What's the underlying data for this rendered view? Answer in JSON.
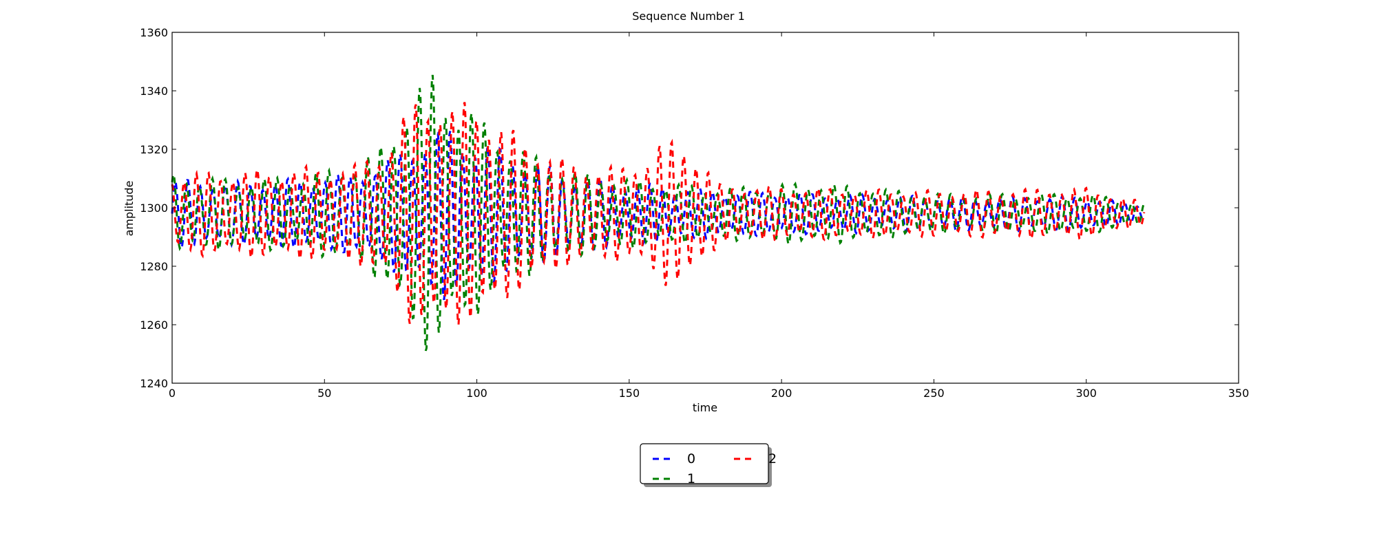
{
  "chart_data": {
    "type": "line",
    "title": "Sequence Number 1",
    "xlabel": "time",
    "ylabel": "amplitude",
    "xlim": [
      0,
      350
    ],
    "ylim": [
      1240,
      1360
    ],
    "xticks": [
      0,
      50,
      100,
      150,
      200,
      250,
      300,
      350
    ],
    "yticks": [
      1240,
      1260,
      1280,
      1300,
      1320,
      1340,
      1360
    ],
    "grid": false,
    "line_style": "dashed",
    "legend_position": "below-center",
    "legend_columns": 2,
    "x_range_of_data": [
      0,
      319
    ],
    "series": [
      {
        "name": "0",
        "color": "#0000ff",
        "approx_envelope": [
          [
            0,
            12
          ],
          [
            20,
            11
          ],
          [
            40,
            12
          ],
          [
            60,
            14
          ],
          [
            70,
            18
          ],
          [
            80,
            26
          ],
          [
            90,
            30
          ],
          [
            100,
            26
          ],
          [
            110,
            22
          ],
          [
            130,
            14
          ],
          [
            150,
            11
          ],
          [
            180,
            8
          ],
          [
            210,
            7
          ],
          [
            250,
            6
          ],
          [
            300,
            6
          ],
          [
            319,
            3
          ]
        ]
      },
      {
        "name": "1",
        "color": "#008000",
        "approx_envelope": [
          [
            0,
            14
          ],
          [
            20,
            12
          ],
          [
            40,
            13
          ],
          [
            60,
            17
          ],
          [
            70,
            25
          ],
          [
            78,
            42
          ],
          [
            86,
            50
          ],
          [
            92,
            40
          ],
          [
            100,
            35
          ],
          [
            110,
            25
          ],
          [
            130,
            15
          ],
          [
            150,
            12
          ],
          [
            180,
            9
          ],
          [
            210,
            11
          ],
          [
            250,
            7
          ],
          [
            300,
            7
          ],
          [
            319,
            4
          ]
        ]
      },
      {
        "name": "2",
        "color": "#ff0000",
        "approx_envelope": [
          [
            0,
            14
          ],
          [
            20,
            15
          ],
          [
            40,
            16
          ],
          [
            60,
            17
          ],
          [
            70,
            24
          ],
          [
            78,
            38
          ],
          [
            86,
            44
          ],
          [
            92,
            38
          ],
          [
            100,
            40
          ],
          [
            110,
            30
          ],
          [
            130,
            18
          ],
          [
            150,
            16
          ],
          [
            160,
            25
          ],
          [
            170,
            25
          ],
          [
            180,
            10
          ],
          [
            210,
            9
          ],
          [
            250,
            8
          ],
          [
            300,
            9
          ],
          [
            319,
            4
          ]
        ]
      }
    ]
  }
}
